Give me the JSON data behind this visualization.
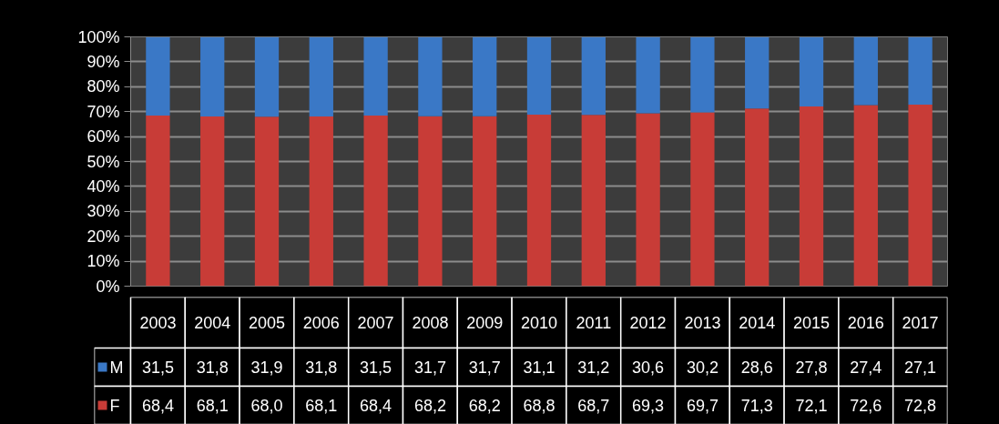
{
  "chart_data": {
    "type": "bar",
    "stacked": true,
    "categories": [
      "2003",
      "2004",
      "2005",
      "2006",
      "2007",
      "2008",
      "2009",
      "2010",
      "2011",
      "2012",
      "2013",
      "2014",
      "2015",
      "2016",
      "2017"
    ],
    "series": [
      {
        "name": "F",
        "color": "#c83c37",
        "values": [
          68.4,
          68.1,
          68.0,
          68.1,
          68.4,
          68.2,
          68.2,
          68.8,
          68.7,
          69.3,
          69.7,
          71.3,
          72.1,
          72.6,
          72.8
        ],
        "value_labels": [
          "68,4",
          "68,1",
          "68,0",
          "68,1",
          "68,4",
          "68,2",
          "68,2",
          "68,8",
          "68,7",
          "69,3",
          "69,7",
          "71,3",
          "72,1",
          "72,6",
          "72,8"
        ]
      },
      {
        "name": "M",
        "color": "#3a78c6",
        "values": [
          31.5,
          31.8,
          31.9,
          31.8,
          31.5,
          31.7,
          31.7,
          31.1,
          31.2,
          30.6,
          30.2,
          28.6,
          27.8,
          27.4,
          27.1
        ],
        "value_labels": [
          "31,5",
          "31,8",
          "31,9",
          "31,8",
          "31,5",
          "31,7",
          "31,7",
          "31,1",
          "31,2",
          "30,6",
          "30,2",
          "28,6",
          "27,8",
          "27,4",
          "27,1"
        ]
      }
    ],
    "ylim": [
      0,
      100
    ],
    "yticks": [
      {
        "value": 0,
        "label": "0%"
      },
      {
        "value": 10,
        "label": "10%"
      },
      {
        "value": 20,
        "label": "20%"
      },
      {
        "value": 30,
        "label": "30%"
      },
      {
        "value": 40,
        "label": "40%"
      },
      {
        "value": 50,
        "label": "50%"
      },
      {
        "value": 60,
        "label": "60%"
      },
      {
        "value": 70,
        "label": "70%"
      },
      {
        "value": 80,
        "label": "80%"
      },
      {
        "value": 90,
        "label": "90%"
      },
      {
        "value": 100,
        "label": "100%"
      }
    ],
    "grid": "y",
    "legend": "bottom"
  }
}
